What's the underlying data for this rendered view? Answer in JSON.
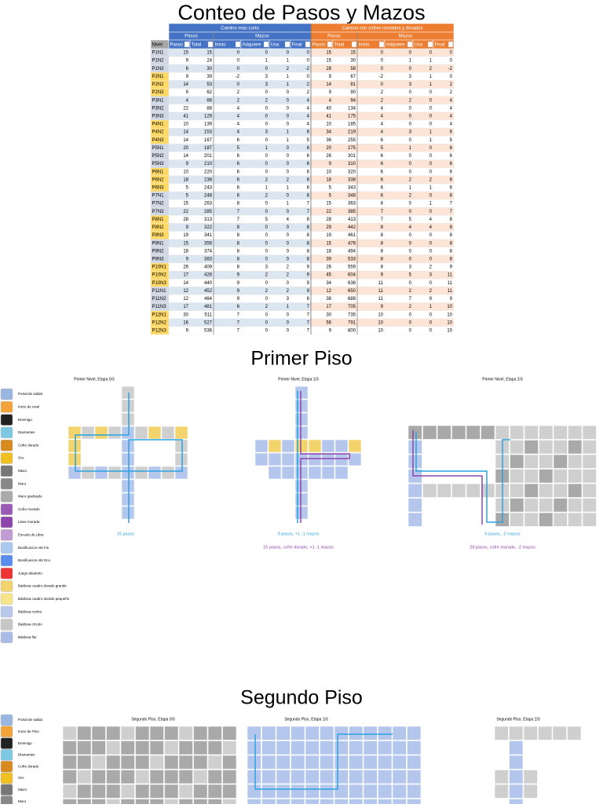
{
  "title": "Conteo de Pasos y Mazos",
  "table": {
    "groups": [
      "Camino mas corto",
      "Camino con cofres morados y dorados"
    ],
    "subgroups": [
      [
        "Pasos",
        "Mazos"
      ],
      [
        "Pasos",
        "Mazos"
      ]
    ],
    "columns": [
      "Nivel",
      "Pasos",
      "Total",
      "Inicio",
      "Adquiere",
      "Usa",
      "Final",
      "Pasos",
      "Total",
      "Inicio",
      "Adquiere",
      "Usa",
      "Final"
    ],
    "rows": [
      [
        "P1N1",
        15,
        15,
        0,
        0,
        0,
        0,
        15,
        15,
        0,
        0,
        0,
        0
      ],
      [
        "P1N2",
        9,
        24,
        0,
        1,
        1,
        0,
        15,
        30,
        0,
        1,
        1,
        0
      ],
      [
        "P1N3",
        6,
        30,
        0,
        0,
        2,
        -2,
        28,
        58,
        0,
        0,
        2,
        -2
      ],
      [
        "P2N1",
        9,
        39,
        -2,
        3,
        1,
        0,
        9,
        67,
        -2,
        3,
        1,
        0
      ],
      [
        "P2N2",
        14,
        53,
        0,
        3,
        1,
        2,
        14,
        81,
        0,
        3,
        1,
        2
      ],
      [
        "P2N3",
        9,
        62,
        2,
        0,
        0,
        2,
        9,
        90,
        2,
        0,
        0,
        2
      ],
      [
        "P3N1",
        4,
        66,
        2,
        2,
        0,
        4,
        4,
        94,
        2,
        2,
        0,
        4
      ],
      [
        "P3N2",
        22,
        88,
        4,
        0,
        0,
        4,
        40,
        134,
        4,
        0,
        0,
        4
      ],
      [
        "P3N3",
        41,
        129,
        4,
        0,
        0,
        4,
        41,
        175,
        4,
        0,
        0,
        4
      ],
      [
        "P4N1",
        10,
        139,
        4,
        0,
        0,
        4,
        10,
        185,
        4,
        0,
        0,
        4
      ],
      [
        "P4N2",
        14,
        153,
        4,
        3,
        1,
        6,
        34,
        219,
        4,
        3,
        1,
        6
      ],
      [
        "P4N3",
        14,
        167,
        6,
        0,
        1,
        5,
        36,
        255,
        6,
        0,
        1,
        5
      ],
      [
        "P5N1",
        20,
        187,
        5,
        1,
        0,
        6,
        20,
        275,
        5,
        1,
        0,
        6
      ],
      [
        "P5N2",
        14,
        201,
        6,
        0,
        0,
        6,
        26,
        301,
        6,
        0,
        0,
        6
      ],
      [
        "P5N3",
        9,
        210,
        6,
        0,
        0,
        6,
        9,
        310,
        6,
        0,
        0,
        6
      ],
      [
        "P6N1",
        10,
        220,
        6,
        0,
        0,
        6,
        10,
        320,
        6,
        0,
        0,
        6
      ],
      [
        "P6N2",
        18,
        238,
        6,
        2,
        2,
        6,
        18,
        338,
        6,
        2,
        2,
        6
      ],
      [
        "P6N3",
        5,
        243,
        6,
        1,
        1,
        6,
        5,
        343,
        6,
        1,
        1,
        6
      ],
      [
        "P7N1",
        5,
        248,
        6,
        2,
        0,
        8,
        5,
        348,
        6,
        2,
        0,
        8
      ],
      [
        "P7N2",
        15,
        263,
        8,
        0,
        1,
        7,
        15,
        363,
        8,
        0,
        1,
        7
      ],
      [
        "P7N3",
        22,
        285,
        7,
        0,
        0,
        7,
        22,
        385,
        7,
        0,
        0,
        7
      ],
      [
        "P8N1",
        28,
        313,
        7,
        5,
        4,
        8,
        28,
        413,
        7,
        5,
        4,
        8
      ],
      [
        "P8N2",
        9,
        322,
        8,
        0,
        0,
        8,
        29,
        442,
        8,
        4,
        4,
        8
      ],
      [
        "P8N3",
        19,
        341,
        8,
        0,
        0,
        8,
        19,
        461,
        8,
        0,
        0,
        8
      ],
      [
        "P9N1",
        15,
        356,
        8,
        0,
        0,
        8,
        15,
        476,
        8,
        0,
        0,
        8
      ],
      [
        "P9N2",
        18,
        374,
        8,
        0,
        0,
        8,
        18,
        494,
        8,
        0,
        0,
        8
      ],
      [
        "P9N3",
        9,
        383,
        8,
        0,
        0,
        8,
        39,
        533,
        8,
        0,
        0,
        8
      ],
      [
        "P10N1",
        26,
        409,
        8,
        3,
        2,
        9,
        26,
        559,
        8,
        3,
        2,
        9
      ],
      [
        "P10N2",
        17,
        426,
        9,
        2,
        2,
        9,
        45,
        604,
        9,
        5,
        3,
        11
      ],
      [
        "P10N3",
        14,
        440,
        9,
        0,
        0,
        9,
        34,
        638,
        11,
        0,
        0,
        11
      ],
      [
        "P11N1",
        12,
        452,
        9,
        2,
        2,
        9,
        12,
        650,
        11,
        2,
        2,
        11
      ],
      [
        "P11N2",
        12,
        464,
        9,
        0,
        3,
        6,
        38,
        688,
        11,
        7,
        9,
        9
      ],
      [
        "P11N3",
        17,
        481,
        6,
        2,
        1,
        7,
        17,
        705,
        9,
        2,
        1,
        10
      ],
      [
        "P12N1",
        30,
        511,
        7,
        0,
        0,
        7,
        30,
        735,
        10,
        0,
        0,
        10
      ],
      [
        "P12N2",
        16,
        527,
        7,
        0,
        0,
        7,
        56,
        791,
        10,
        0,
        0,
        10
      ],
      [
        "P12N3",
        9,
        536,
        7,
        0,
        0,
        7,
        9,
        800,
        10,
        0,
        0,
        10
      ]
    ]
  },
  "primer_piso": {
    "title": "Primer Piso",
    "legend": [
      "Portal de salida",
      "Inicio de nivel",
      "Enemigo",
      "Diamantes",
      "Cofre dorado",
      "Oro",
      "Mazo",
      "Muro",
      "Muro quebrado",
      "Cofre morado",
      "Llave morada",
      "Escudo de Libra",
      "Bonificacion Atk Fis",
      "Bonificacion Atk Dco",
      "Juego aleatorio",
      "Baldosa cuadro dorado grande",
      "Baldosa cuadro dorado pequeño",
      "Baldosa rombo",
      "Baldosa círculo",
      "Baldosa flor"
    ],
    "maps": [
      {
        "title": "Primer Nivel, Etapa 0/3",
        "captions": [
          "15 pasos"
        ]
      },
      {
        "title": "Primer Nivel, Etapa 1/3",
        "captions": [
          "9 pasos, +1 -1 mazos",
          "15 pasos, cofre dorado, +1 -1 mazos"
        ]
      },
      {
        "title": "Primer Nivel, Etapa 2/3",
        "captions": [
          "6 pasos, -2 mazos",
          "28 pasos, cofre morado, -2 mazos"
        ]
      }
    ]
  },
  "segundo_piso": {
    "title": "Segundo Piso",
    "legend": [
      "Portal de salida",
      "Inicio de Piso",
      "Enemigo",
      "Diamantes",
      "Cofre dorado",
      "Oro",
      "Mazo",
      "Muro"
    ],
    "maps": [
      {
        "title": "Segundo Piso, Etapa 0/3"
      },
      {
        "title": "Segundo Piso, Etapa 1/3"
      },
      {
        "title": "Segundo Piso, Etapa 2/3"
      }
    ]
  }
}
